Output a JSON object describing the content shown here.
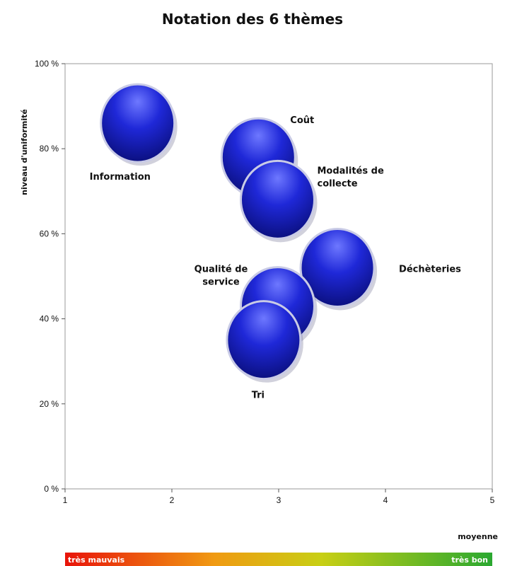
{
  "chart_data": {
    "type": "scatter",
    "title": "Notation des 6 thèmes",
    "xlabel": "moyenne",
    "ylabel": "niveau d'uniformité",
    "xlim": [
      1,
      5
    ],
    "ylim": [
      0,
      100
    ],
    "x_ticks": [
      1,
      2,
      3,
      4,
      5
    ],
    "y_ticks": [
      0,
      20,
      40,
      60,
      80,
      100
    ],
    "y_tick_labels": [
      "0 %",
      "20 %",
      "40 %",
      "60 %",
      "80 %",
      "100 %"
    ],
    "grid": false,
    "bubble_color": "#1f28d8",
    "points": [
      {
        "label": "Information",
        "x": 1.68,
        "y": 86
      },
      {
        "label": "Coût",
        "x": 2.81,
        "y": 78
      },
      {
        "label": "Modalités de collecte",
        "x": 2.99,
        "y": 68
      },
      {
        "label": "Déchèteries",
        "x": 3.55,
        "y": 52
      },
      {
        "label": "Qualité de service",
        "x": 2.99,
        "y": 43
      },
      {
        "label": "Tri",
        "x": 2.86,
        "y": 35
      }
    ],
    "scale_bar": {
      "left_label": "très mauvais",
      "right_label": "très bon",
      "colors": [
        "#e8140a",
        "#f09a12",
        "#c8cf14",
        "#2aa830"
      ]
    }
  }
}
